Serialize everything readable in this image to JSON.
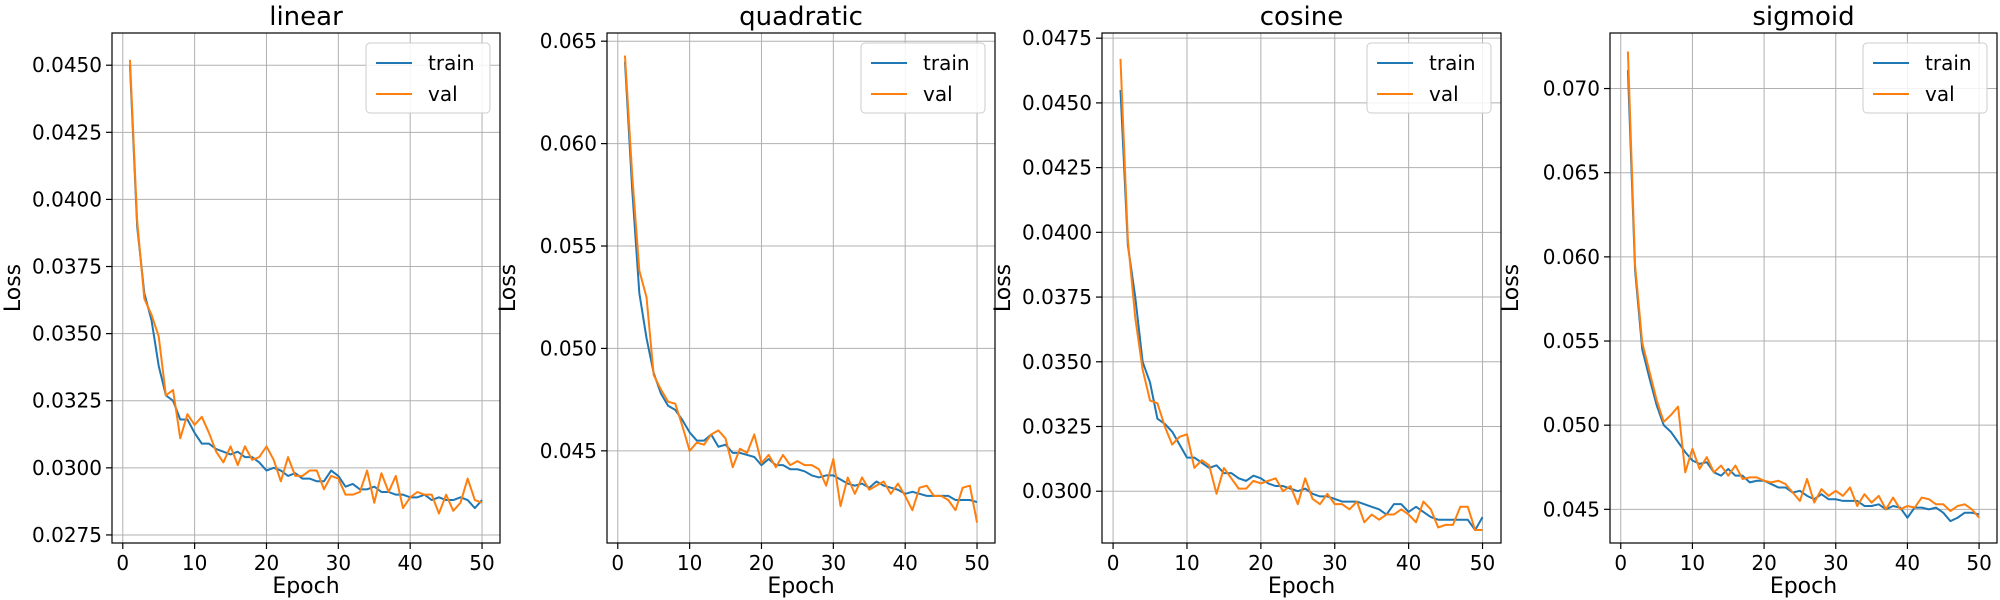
{
  "colors": {
    "train": "#1f77b4",
    "val": "#ff7f0e",
    "grid": "#b0b0b0"
  },
  "chart_data": [
    {
      "type": "line",
      "title": "linear",
      "xlabel": "Epoch",
      "ylabel": "Loss",
      "xlim": [
        -1.5,
        52.5
      ],
      "ylim": [
        0.0272,
        0.0462
      ],
      "xticks": [
        0,
        10,
        20,
        30,
        40,
        50
      ],
      "yticks": [
        0.0275,
        0.03,
        0.0325,
        0.035,
        0.0375,
        0.04,
        0.0425,
        0.045
      ],
      "ytick_labels": [
        "0.0275",
        "0.0300",
        "0.0325",
        "0.0350",
        "0.0375",
        "0.0400",
        "0.0425",
        "0.0450"
      ],
      "grid": true,
      "legend": "top-right",
      "series": [
        {
          "name": "train",
          "x": [
            1,
            2,
            3,
            4,
            5,
            6,
            7,
            8,
            9,
            10,
            11,
            12,
            13,
            14,
            15,
            16,
            17,
            18,
            19,
            20,
            21,
            22,
            23,
            24,
            25,
            26,
            27,
            28,
            29,
            30,
            31,
            32,
            33,
            34,
            35,
            36,
            37,
            38,
            39,
            40,
            41,
            42,
            43,
            44,
            45,
            46,
            47,
            48,
            49,
            50
          ],
          "values": [
            0.045,
            0.039,
            0.0365,
            0.0355,
            0.0338,
            0.0327,
            0.0325,
            0.0318,
            0.0318,
            0.0313,
            0.0309,
            0.0309,
            0.0307,
            0.0306,
            0.0305,
            0.0306,
            0.0304,
            0.0304,
            0.0302,
            0.0299,
            0.03,
            0.0299,
            0.0297,
            0.0298,
            0.0296,
            0.0296,
            0.0295,
            0.0295,
            0.0299,
            0.0297,
            0.0293,
            0.0294,
            0.0292,
            0.0292,
            0.0293,
            0.0291,
            0.0291,
            0.029,
            0.029,
            0.0289,
            0.0289,
            0.029,
            0.0288,
            0.0289,
            0.0288,
            0.0288,
            0.0289,
            0.0288,
            0.0285,
            0.0288
          ]
        },
        {
          "name": "val",
          "x": [
            1,
            2,
            3,
            4,
            5,
            6,
            7,
            8,
            9,
            10,
            11,
            12,
            13,
            14,
            15,
            16,
            17,
            18,
            19,
            20,
            21,
            22,
            23,
            24,
            25,
            26,
            27,
            28,
            29,
            30,
            31,
            32,
            33,
            34,
            35,
            36,
            37,
            38,
            39,
            40,
            41,
            42,
            43,
            44,
            45,
            46,
            47,
            48,
            49,
            50
          ],
          "values": [
            0.0452,
            0.0392,
            0.0363,
            0.0357,
            0.0349,
            0.0327,
            0.0329,
            0.0311,
            0.032,
            0.0316,
            0.0319,
            0.0313,
            0.0306,
            0.0302,
            0.0308,
            0.0301,
            0.0308,
            0.0303,
            0.0304,
            0.0308,
            0.0303,
            0.0295,
            0.0304,
            0.0297,
            0.0297,
            0.0299,
            0.0299,
            0.0292,
            0.0297,
            0.0296,
            0.029,
            0.029,
            0.0291,
            0.0299,
            0.0287,
            0.0298,
            0.0291,
            0.0297,
            0.0285,
            0.0289,
            0.0291,
            0.029,
            0.029,
            0.0283,
            0.029,
            0.0284,
            0.0287,
            0.0296,
            0.0288,
            0.0287
          ]
        }
      ]
    },
    {
      "type": "line",
      "title": "quadratic",
      "xlabel": "Epoch",
      "ylabel": "Loss",
      "xlim": [
        -1.5,
        52.5
      ],
      "ylim": [
        0.0405,
        0.0654
      ],
      "xticks": [
        0,
        10,
        20,
        30,
        40,
        50
      ],
      "yticks": [
        0.045,
        0.05,
        0.055,
        0.06,
        0.065
      ],
      "ytick_labels": [
        "0.045",
        "0.050",
        "0.055",
        "0.060",
        "0.065"
      ],
      "grid": true,
      "legend": "top-right",
      "series": [
        {
          "name": "train",
          "x": [
            1,
            2,
            3,
            4,
            5,
            6,
            7,
            8,
            9,
            10,
            11,
            12,
            13,
            14,
            15,
            16,
            17,
            18,
            19,
            20,
            21,
            22,
            23,
            24,
            25,
            26,
            27,
            28,
            29,
            30,
            31,
            32,
            33,
            34,
            35,
            36,
            37,
            38,
            39,
            40,
            41,
            42,
            43,
            44,
            45,
            46,
            47,
            48,
            49,
            50
          ],
          "values": [
            0.064,
            0.0578,
            0.0527,
            0.0505,
            0.0488,
            0.0478,
            0.0472,
            0.047,
            0.0465,
            0.0459,
            0.0455,
            0.0455,
            0.0458,
            0.0452,
            0.0453,
            0.0449,
            0.0449,
            0.0448,
            0.0447,
            0.0443,
            0.0446,
            0.0443,
            0.0443,
            0.0441,
            0.0441,
            0.044,
            0.0438,
            0.0437,
            0.0438,
            0.0438,
            0.0436,
            0.0434,
            0.0433,
            0.0434,
            0.0432,
            0.0435,
            0.0433,
            0.0432,
            0.0431,
            0.0429,
            0.043,
            0.0429,
            0.0428,
            0.0428,
            0.0428,
            0.0428,
            0.0426,
            0.0426,
            0.0426,
            0.0425
          ]
        },
        {
          "name": "val",
          "x": [
            1,
            2,
            3,
            4,
            5,
            6,
            7,
            8,
            9,
            10,
            11,
            12,
            13,
            14,
            15,
            16,
            17,
            18,
            19,
            20,
            21,
            22,
            23,
            24,
            25,
            26,
            27,
            28,
            29,
            30,
            31,
            32,
            33,
            34,
            35,
            36,
            37,
            38,
            39,
            40,
            41,
            42,
            43,
            44,
            45,
            46,
            47,
            48,
            49,
            50
          ],
          "values": [
            0.0643,
            0.0585,
            0.0538,
            0.0525,
            0.0487,
            0.048,
            0.0474,
            0.0473,
            0.0462,
            0.045,
            0.0454,
            0.0453,
            0.0458,
            0.046,
            0.0456,
            0.0442,
            0.0451,
            0.0449,
            0.0458,
            0.0444,
            0.0448,
            0.0442,
            0.0448,
            0.0443,
            0.0445,
            0.0443,
            0.0443,
            0.0441,
            0.0433,
            0.0446,
            0.0423,
            0.0437,
            0.0429,
            0.0437,
            0.0431,
            0.0433,
            0.0435,
            0.0429,
            0.0434,
            0.0428,
            0.0421,
            0.0432,
            0.0433,
            0.0428,
            0.0428,
            0.0426,
            0.0421,
            0.0432,
            0.0433,
            0.0415
          ]
        }
      ]
    },
    {
      "type": "line",
      "title": "cosine",
      "xlabel": "Epoch",
      "ylabel": "Loss",
      "xlim": [
        -1.5,
        52.5
      ],
      "ylim": [
        0.028,
        0.0477
      ],
      "xticks": [
        0,
        10,
        20,
        30,
        40,
        50
      ],
      "yticks": [
        0.03,
        0.0325,
        0.035,
        0.0375,
        0.04,
        0.0425,
        0.045,
        0.0475
      ],
      "ytick_labels": [
        "0.0300",
        "0.0325",
        "0.0350",
        "0.0375",
        "0.0400",
        "0.0425",
        "0.0450",
        "0.0475"
      ],
      "grid": true,
      "legend": "top-right",
      "series": [
        {
          "name": "train",
          "x": [
            1,
            2,
            3,
            4,
            5,
            6,
            7,
            8,
            9,
            10,
            11,
            12,
            13,
            14,
            15,
            16,
            17,
            18,
            19,
            20,
            21,
            22,
            23,
            24,
            25,
            26,
            27,
            28,
            29,
            30,
            31,
            32,
            33,
            34,
            35,
            36,
            37,
            38,
            39,
            40,
            41,
            42,
            43,
            44,
            45,
            46,
            47,
            48,
            49,
            50
          ],
          "values": [
            0.0455,
            0.0395,
            0.0375,
            0.035,
            0.0342,
            0.0328,
            0.0326,
            0.0323,
            0.0318,
            0.0313,
            0.0313,
            0.0311,
            0.0309,
            0.031,
            0.0307,
            0.0307,
            0.0305,
            0.0304,
            0.0306,
            0.0305,
            0.0303,
            0.0302,
            0.0302,
            0.0301,
            0.03,
            0.0301,
            0.0299,
            0.0298,
            0.0298,
            0.0297,
            0.0296,
            0.0296,
            0.0296,
            0.0295,
            0.0294,
            0.0293,
            0.0291,
            0.0295,
            0.0295,
            0.0292,
            0.0294,
            0.0292,
            0.029,
            0.0289,
            0.0289,
            0.0289,
            0.0289,
            0.0289,
            0.0285,
            0.029
          ]
        },
        {
          "name": "val",
          "x": [
            1,
            2,
            3,
            4,
            5,
            6,
            7,
            8,
            9,
            10,
            11,
            12,
            13,
            14,
            15,
            16,
            17,
            18,
            19,
            20,
            21,
            22,
            23,
            24,
            25,
            26,
            27,
            28,
            29,
            30,
            31,
            32,
            33,
            34,
            35,
            36,
            37,
            38,
            39,
            40,
            41,
            42,
            43,
            44,
            45,
            46,
            47,
            48,
            49,
            50
          ],
          "values": [
            0.0467,
            0.0397,
            0.0367,
            0.0347,
            0.0335,
            0.0334,
            0.0325,
            0.0318,
            0.0321,
            0.0322,
            0.0309,
            0.0312,
            0.031,
            0.0299,
            0.0309,
            0.0305,
            0.0301,
            0.0301,
            0.0304,
            0.0303,
            0.0304,
            0.0305,
            0.03,
            0.0302,
            0.0295,
            0.0305,
            0.0297,
            0.0295,
            0.0299,
            0.0295,
            0.0295,
            0.0293,
            0.0296,
            0.0288,
            0.0291,
            0.0289,
            0.0291,
            0.0291,
            0.0293,
            0.0291,
            0.0288,
            0.0296,
            0.0293,
            0.0286,
            0.0287,
            0.0287,
            0.0294,
            0.0294,
            0.0285,
            0.0285
          ]
        }
      ]
    },
    {
      "type": "line",
      "title": "sigmoid",
      "xlabel": "Epoch",
      "ylabel": "Loss",
      "xlim": [
        -1.5,
        52.5
      ],
      "ylim": [
        0.043,
        0.0733
      ],
      "xticks": [
        0,
        10,
        20,
        30,
        40,
        50
      ],
      "yticks": [
        0.045,
        0.05,
        0.055,
        0.06,
        0.065,
        0.07
      ],
      "ytick_labels": [
        "0.045",
        "0.050",
        "0.055",
        "0.060",
        "0.065",
        "0.070"
      ],
      "grid": true,
      "legend": "top-right",
      "series": [
        {
          "name": "train",
          "x": [
            1,
            2,
            3,
            4,
            5,
            6,
            7,
            8,
            9,
            10,
            11,
            12,
            13,
            14,
            15,
            16,
            17,
            18,
            19,
            20,
            21,
            22,
            23,
            24,
            25,
            26,
            27,
            28,
            29,
            30,
            31,
            32,
            33,
            34,
            35,
            36,
            37,
            38,
            39,
            40,
            41,
            42,
            43,
            44,
            45,
            46,
            47,
            48,
            49,
            50
          ],
          "values": [
            0.0711,
            0.0592,
            0.0545,
            0.0528,
            0.0512,
            0.05,
            0.0496,
            0.049,
            0.0484,
            0.0479,
            0.0477,
            0.0478,
            0.0472,
            0.047,
            0.0474,
            0.047,
            0.047,
            0.0466,
            0.0467,
            0.0467,
            0.0465,
            0.0463,
            0.0463,
            0.046,
            0.0461,
            0.0458,
            0.0456,
            0.0459,
            0.0456,
            0.0456,
            0.0455,
            0.0455,
            0.0455,
            0.0452,
            0.0452,
            0.0453,
            0.045,
            0.0452,
            0.0451,
            0.0445,
            0.0451,
            0.0451,
            0.045,
            0.0451,
            0.0448,
            0.0443,
            0.0445,
            0.0448,
            0.0448,
            0.0447
          ]
        },
        {
          "name": "val",
          "x": [
            1,
            2,
            3,
            4,
            5,
            6,
            7,
            8,
            9,
            10,
            11,
            12,
            13,
            14,
            15,
            16,
            17,
            18,
            19,
            20,
            21,
            22,
            23,
            24,
            25,
            26,
            27,
            28,
            29,
            30,
            31,
            32,
            33,
            34,
            35,
            36,
            37,
            38,
            39,
            40,
            41,
            42,
            43,
            44,
            45,
            46,
            47,
            48,
            49,
            50
          ],
          "values": [
            0.0722,
            0.0595,
            0.0549,
            0.0532,
            0.0515,
            0.0502,
            0.0506,
            0.0511,
            0.0472,
            0.0486,
            0.0474,
            0.0481,
            0.0472,
            0.0476,
            0.047,
            0.0476,
            0.0468,
            0.0469,
            0.0469,
            0.0467,
            0.0466,
            0.0467,
            0.0465,
            0.046,
            0.0455,
            0.0468,
            0.0454,
            0.0462,
            0.0458,
            0.0461,
            0.0458,
            0.0463,
            0.0452,
            0.0459,
            0.0454,
            0.0458,
            0.045,
            0.0457,
            0.045,
            0.0452,
            0.0451,
            0.0457,
            0.0456,
            0.0453,
            0.0453,
            0.0449,
            0.0452,
            0.0453,
            0.045,
            0.0445
          ]
        }
      ]
    }
  ]
}
